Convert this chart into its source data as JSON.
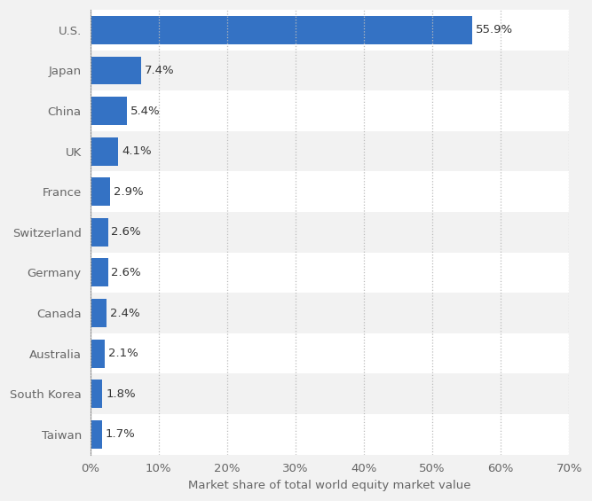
{
  "categories": [
    "Taiwan",
    "South Korea",
    "Australia",
    "Canada",
    "Germany",
    "Switzerland",
    "France",
    "UK",
    "China",
    "Japan",
    "U.S."
  ],
  "values": [
    1.7,
    1.8,
    2.1,
    2.4,
    2.6,
    2.6,
    2.9,
    4.1,
    5.4,
    7.4,
    55.9
  ],
  "labels": [
    "1.7%",
    "1.8%",
    "2.1%",
    "2.4%",
    "2.6%",
    "2.6%",
    "2.9%",
    "4.1%",
    "5.4%",
    "7.4%",
    "55.9%"
  ],
  "bar_color": "#3472c4",
  "xlabel": "Market share of total world equity market value",
  "xlim": [
    0,
    70
  ],
  "xtick_values": [
    0,
    10,
    20,
    30,
    40,
    50,
    60,
    70
  ],
  "xtick_labels": [
    "0%",
    "10%",
    "20%",
    "30%",
    "40%",
    "50%",
    "60%",
    "70%"
  ],
  "bg_color": "#f2f2f2",
  "row_color_even": "#ffffff",
  "row_color_odd": "#f2f2f2",
  "label_fontsize": 9.5,
  "tick_fontsize": 9.5,
  "xlabel_fontsize": 9.5,
  "label_color": "#333333",
  "tick_color": "#666666"
}
